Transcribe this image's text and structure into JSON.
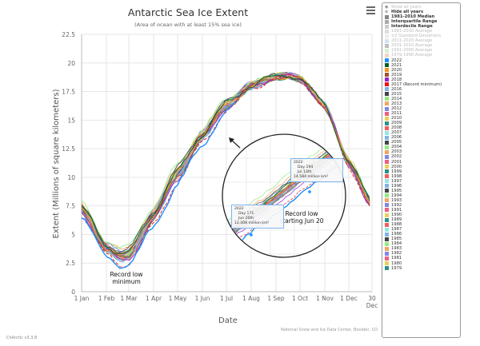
{
  "header": {
    "title": "Antarctic Sea Ice Extent",
    "subtitle": "(Area of ocean with at least 15% sea ice)",
    "menu_icon": "hamburger-menu-icon"
  },
  "footer": {
    "credit": "National Snow and Ice Data Center, Boulder, CO",
    "version": "ChArctic v3.3.8"
  },
  "annotations": {
    "record_low_minimum": [
      "Record low",
      "minimum"
    ],
    "record_low_june": [
      "Record low",
      "starting Jun 20"
    ],
    "tooltip_1": {
      "year": "2022",
      "day": "Day 171",
      "date": "Jun 20th",
      "value": "12.408 million km²"
    },
    "tooltip_2": {
      "year": "2022",
      "day": "Day 194",
      "date": "Jul 13th",
      "value": "14.584 million km²"
    }
  },
  "legend": {
    "controls": [
      {
        "label": "Show all years",
        "icon": "eye-icon",
        "active": false
      },
      {
        "label": "Hide all years",
        "icon": "eye-slash-icon",
        "active": true
      }
    ],
    "statistics": [
      {
        "label": "1981-2010 Median",
        "color": "#888888",
        "active": true
      },
      {
        "label": "Interquartile Range",
        "color": "#aaaaaa",
        "active": true
      },
      {
        "label": "Interdecile Range",
        "color": "#cccccc",
        "active": true
      },
      {
        "label": "1981-2010 Average",
        "color": "#dddddd",
        "active": false
      },
      {
        "label": "±2 Standard Deviations",
        "color": "#eeeeee",
        "active": false
      },
      {
        "label": "2011-2020 Average",
        "color": "#cfe3f7",
        "active": false
      },
      {
        "label": "2001-2010 Average",
        "color": "#bdbdbd",
        "active": false
      },
      {
        "label": "1991-2000 Average",
        "color": "#d3f3cf",
        "active": false
      },
      {
        "label": "1979-1990 Average",
        "color": "#f7d3c3",
        "active": false
      }
    ],
    "years": [
      {
        "label": "2022",
        "color": "#1e90ff"
      },
      {
        "label": "2021",
        "color": "#0b5e2c"
      },
      {
        "label": "2020",
        "color": "#f7941d"
      },
      {
        "label": "2019",
        "color": "#a0522d"
      },
      {
        "label": "2018",
        "color": "#9b20c8"
      },
      {
        "label": "2017 (Record minimum)",
        "color": "#ee1111"
      },
      {
        "label": "2016",
        "color": "#7cb5ec"
      },
      {
        "label": "2015",
        "color": "#434348"
      },
      {
        "label": "2014",
        "color": "#90ed7d"
      },
      {
        "label": "2013",
        "color": "#f7a35c"
      },
      {
        "label": "2012",
        "color": "#8085e9"
      },
      {
        "label": "2011",
        "color": "#f15c80"
      },
      {
        "label": "2010",
        "color": "#e4d354"
      },
      {
        "label": "2009",
        "color": "#2b908f"
      },
      {
        "label": "2008",
        "color": "#f45b5b"
      },
      {
        "label": "2007",
        "color": "#91e8e1"
      },
      {
        "label": "2006",
        "color": "#7cb5ec"
      },
      {
        "label": "2005",
        "color": "#434348"
      },
      {
        "label": "2004",
        "color": "#90ed7d"
      },
      {
        "label": "2003",
        "color": "#f7a35c"
      },
      {
        "label": "2002",
        "color": "#8085e9"
      },
      {
        "label": "2001",
        "color": "#f15c80"
      },
      {
        "label": "2000",
        "color": "#e4d354"
      },
      {
        "label": "1999",
        "color": "#2b908f"
      },
      {
        "label": "1998",
        "color": "#f45b5b"
      },
      {
        "label": "1997",
        "color": "#91e8e1"
      },
      {
        "label": "1996",
        "color": "#7cb5ec"
      },
      {
        "label": "1995",
        "color": "#434348"
      },
      {
        "label": "1994",
        "color": "#90ed7d"
      },
      {
        "label": "1993",
        "color": "#f7a35c"
      },
      {
        "label": "1992",
        "color": "#8085e9"
      },
      {
        "label": "1991",
        "color": "#f15c80"
      },
      {
        "label": "1990",
        "color": "#e4d354"
      },
      {
        "label": "1989",
        "color": "#2b908f"
      },
      {
        "label": "1988",
        "color": "#f45b5b"
      },
      {
        "label": "1987",
        "color": "#91e8e1"
      },
      {
        "label": "1986",
        "color": "#7cb5ec"
      },
      {
        "label": "1985",
        "color": "#434348"
      },
      {
        "label": "1984",
        "color": "#90ed7d"
      },
      {
        "label": "1983",
        "color": "#f7a35c"
      },
      {
        "label": "1982",
        "color": "#8085e9"
      },
      {
        "label": "1981",
        "color": "#f15c80"
      },
      {
        "label": "1980",
        "color": "#e4d354"
      },
      {
        "label": "1979",
        "color": "#2b908f"
      }
    ]
  },
  "chart_data": {
    "type": "line",
    "title": "Antarctic Sea Ice Extent",
    "subtitle": "(Area of ocean with at least 15% sea ice)",
    "xlabel": "Date",
    "ylabel": "Extent (Millions of square kilometers)",
    "ylim": [
      0,
      22.5
    ],
    "xlim": [
      1,
      364
    ],
    "yticks": [
      "0",
      "2.5",
      "5",
      "7.5",
      "10",
      "12.5",
      "15",
      "17.5",
      "20",
      "22.5"
    ],
    "xticks": [
      {
        "label": "1 Jan",
        "day": 1
      },
      {
        "label": "1 Feb",
        "day": 32
      },
      {
        "label": "1 Mar",
        "day": 60
      },
      {
        "label": "1 Apr",
        "day": 91
      },
      {
        "label": "1 May",
        "day": 121
      },
      {
        "label": "1 Jun",
        "day": 152
      },
      {
        "label": "1 Jul",
        "day": 182
      },
      {
        "label": "1 Aug",
        "day": 213
      },
      {
        "label": "1 Sep",
        "day": 244
      },
      {
        "label": "1 Oct",
        "day": 274
      },
      {
        "label": "1 Nov",
        "day": 305
      },
      {
        "label": "1 Dec",
        "day": 335
      },
      {
        "label": "30",
        "label2": "Dec",
        "day": 364
      }
    ],
    "grid": true,
    "legend_position": "right",
    "climatology_days": [
      1,
      32,
      50,
      60,
      91,
      121,
      152,
      182,
      213,
      244,
      260,
      274,
      305,
      335,
      364
    ],
    "climatology_values": [
      7.2,
      3.8,
      3.0,
      3.2,
      6.6,
      10.3,
      13.6,
      16.3,
      18.0,
      18.8,
      18.9,
      18.6,
      16.3,
      11.2,
      7.6
    ],
    "year_offsets": {
      "2022": -0.85,
      "2021": 0.25,
      "2020": 0.1,
      "2019": -0.2,
      "2018": -0.35,
      "2017": -0.7,
      "2016": -0.15,
      "2015": 0.45,
      "2014": 0.8,
      "2013": 0.55,
      "2012": 0.35,
      "2011": 0.05,
      "2010": 0.3,
      "2009": 0.2,
      "2008": 0.15,
      "2007": 0.25,
      "2006": 0.0,
      "2005": 0.1,
      "2004": 0.2,
      "2003": 0.15,
      "2002": -0.1,
      "2001": 0.05,
      "2000": 0.1,
      "1999": 0.0,
      "1998": 0.05,
      "1997": -0.05,
      "1996": 0.1,
      "1995": 0.15,
      "1994": 0.05,
      "1993": -0.1,
      "1992": -0.05,
      "1991": 0.0,
      "1990": 0.05,
      "1989": -0.15,
      "1988": 0.0,
      "1987": 0.05,
      "1986": -0.2,
      "1985": 0.1,
      "1984": -0.1,
      "1983": 0.05,
      "1982": 0.0,
      "1981": 0.1,
      "1980": -0.05,
      "1979": -0.1
    },
    "highlight_points": [
      {
        "series": "2022",
        "day": 171,
        "value": 12.408
      },
      {
        "series": "2022",
        "day": 194,
        "value": 14.584
      }
    ]
  }
}
